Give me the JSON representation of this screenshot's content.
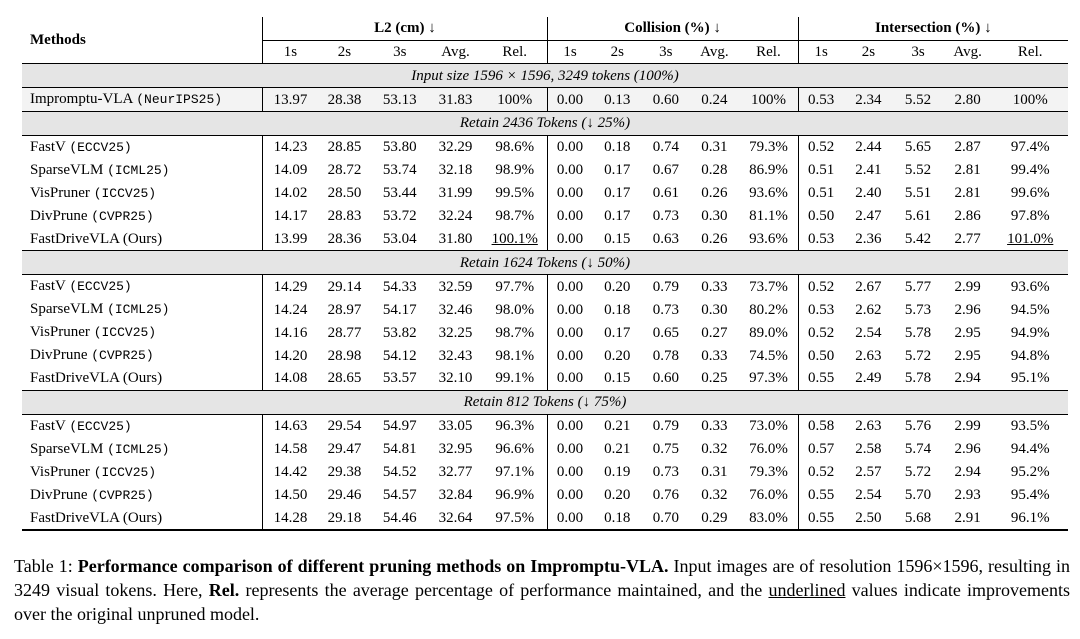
{
  "table": {
    "methods_header": "Methods",
    "groups": [
      "L2 (cm) ↓",
      "Collision (%) ↓",
      "Intersection (%) ↓"
    ],
    "subheaders": [
      "1s",
      "2s",
      "3s",
      "Avg.",
      "Rel."
    ],
    "baseline_section": "Input size 1596 × 1596, 3249 tokens (100%)",
    "baseline": {
      "name": "Impromptu-VLA",
      "venue": "(NeurIPS25)",
      "cells": [
        "13.97",
        "28.38",
        "53.13",
        "31.83",
        "100%",
        "0.00",
        "0.13",
        "0.60",
        "0.24",
        "100%",
        "0.53",
        "2.34",
        "5.52",
        "2.80",
        "100%"
      ],
      "bold": [],
      "underline": []
    },
    "sections": [
      {
        "label": "Retain 2436 Tokens (↓ 25%)",
        "rows": [
          {
            "name": "FastV",
            "venue": "(ECCV25)",
            "cells": [
              "14.23",
              "28.85",
              "53.80",
              "32.29",
              "98.6%",
              "0.00",
              "0.18",
              "0.74",
              "0.31",
              "79.3%",
              "0.52",
              "2.44",
              "5.65",
              "2.87",
              "97.4%"
            ],
            "bold": [],
            "underline": []
          },
          {
            "name": "SparseVLM",
            "venue": "(ICML25)",
            "cells": [
              "14.09",
              "28.72",
              "53.74",
              "32.18",
              "98.9%",
              "0.00",
              "0.17",
              "0.67",
              "0.28",
              "86.9%",
              "0.51",
              "2.41",
              "5.52",
              "2.81",
              "99.4%"
            ],
            "bold": [],
            "underline": []
          },
          {
            "name": "VisPruner",
            "venue": "(ICCV25)",
            "cells": [
              "14.02",
              "28.50",
              "53.44",
              "31.99",
              "99.5%",
              "0.00",
              "0.17",
              "0.61",
              "0.26",
              "93.6%",
              "0.51",
              "2.40",
              "5.51",
              "2.81",
              "99.6%"
            ],
            "bold": [
              7
            ],
            "underline": []
          },
          {
            "name": "DivPrune",
            "venue": "(CVPR25)",
            "cells": [
              "14.17",
              "28.83",
              "53.72",
              "32.24",
              "98.7%",
              "0.00",
              "0.17",
              "0.73",
              "0.30",
              "81.1%",
              "0.50",
              "2.47",
              "5.61",
              "2.86",
              "97.8%"
            ],
            "bold": [
              10
            ],
            "underline": []
          },
          {
            "name": "FastDriveVLA (Ours)",
            "venue": "",
            "name_bold": true,
            "cells": [
              "13.99",
              "28.36",
              "53.04",
              "31.80",
              "100.1%",
              "0.00",
              "0.15",
              "0.63",
              "0.26",
              "93.6%",
              "0.53",
              "2.36",
              "5.42",
              "2.77",
              "101.0%"
            ],
            "bold": [
              0,
              1,
              2,
              3,
              4,
              5,
              6,
              8,
              9,
              11,
              12,
              13,
              14
            ],
            "underline": [
              4,
              14
            ]
          }
        ]
      },
      {
        "label": "Retain 1624 Tokens (↓ 50%)",
        "rows": [
          {
            "name": "FastV",
            "venue": "(ECCV25)",
            "cells": [
              "14.29",
              "29.14",
              "54.33",
              "32.59",
              "97.7%",
              "0.00",
              "0.20",
              "0.79",
              "0.33",
              "73.7%",
              "0.52",
              "2.67",
              "5.77",
              "2.99",
              "93.6%"
            ],
            "bold": [],
            "underline": []
          },
          {
            "name": "SparseVLM",
            "venue": "(ICML25)",
            "cells": [
              "14.24",
              "28.97",
              "54.17",
              "32.46",
              "98.0%",
              "0.00",
              "0.18",
              "0.73",
              "0.30",
              "80.2%",
              "0.53",
              "2.62",
              "5.73",
              "2.96",
              "94.5%"
            ],
            "bold": [],
            "underline": []
          },
          {
            "name": "VisPruner",
            "venue": "(ICCV25)",
            "cells": [
              "14.16",
              "28.77",
              "53.82",
              "32.25",
              "98.7%",
              "0.00",
              "0.17",
              "0.65",
              "0.27",
              "89.0%",
              "0.52",
              "2.54",
              "5.78",
              "2.95",
              "94.9%"
            ],
            "bold": [],
            "underline": []
          },
          {
            "name": "DivPrune",
            "venue": "(CVPR25)",
            "cells": [
              "14.20",
              "28.98",
              "54.12",
              "32.43",
              "98.1%",
              "0.00",
              "0.20",
              "0.78",
              "0.33",
              "74.5%",
              "0.50",
              "2.63",
              "5.72",
              "2.95",
              "94.8%"
            ],
            "bold": [
              10,
              12
            ],
            "underline": []
          },
          {
            "name": "FastDriveVLA (Ours)",
            "venue": "",
            "name_bold": true,
            "cells": [
              "14.08",
              "28.65",
              "53.57",
              "32.10",
              "99.1%",
              "0.00",
              "0.15",
              "0.60",
              "0.25",
              "97.3%",
              "0.55",
              "2.49",
              "5.78",
              "2.94",
              "95.1%"
            ],
            "bold": [
              0,
              1,
              2,
              3,
              4,
              5,
              6,
              7,
              8,
              9,
              11,
              13,
              14
            ],
            "underline": []
          }
        ]
      },
      {
        "label": "Retain 812 Tokens (↓ 75%)",
        "rows": [
          {
            "name": "FastV",
            "venue": "(ECCV25)",
            "cells": [
              "14.63",
              "29.54",
              "54.97",
              "33.05",
              "96.3%",
              "0.00",
              "0.21",
              "0.79",
              "0.33",
              "73.0%",
              "0.58",
              "2.63",
              "5.76",
              "2.99",
              "93.5%"
            ],
            "bold": [],
            "underline": []
          },
          {
            "name": "SparseVLM",
            "venue": "(ICML25)",
            "cells": [
              "14.58",
              "29.47",
              "54.81",
              "32.95",
              "96.6%",
              "0.00",
              "0.21",
              "0.75",
              "0.32",
              "76.0%",
              "0.57",
              "2.58",
              "5.74",
              "2.96",
              "94.4%"
            ],
            "bold": [],
            "underline": []
          },
          {
            "name": "VisPruner",
            "venue": "(ICCV25)",
            "cells": [
              "14.42",
              "29.38",
              "54.52",
              "32.77",
              "97.1%",
              "0.00",
              "0.19",
              "0.73",
              "0.31",
              "79.3%",
              "0.52",
              "2.57",
              "5.72",
              "2.94",
              "95.2%"
            ],
            "bold": [
              10
            ],
            "underline": []
          },
          {
            "name": "DivPrune",
            "venue": "(CVPR25)",
            "cells": [
              "14.50",
              "29.46",
              "54.57",
              "32.84",
              "96.9%",
              "0.00",
              "0.20",
              "0.76",
              "0.32",
              "76.0%",
              "0.55",
              "2.54",
              "5.70",
              "2.93",
              "95.4%"
            ],
            "bold": [],
            "underline": []
          },
          {
            "name": "FastDriveVLA (Ours)",
            "venue": "",
            "name_bold": true,
            "cells": [
              "14.28",
              "29.18",
              "54.46",
              "32.64",
              "97.5%",
              "0.00",
              "0.18",
              "0.70",
              "0.29",
              "83.0%",
              "0.55",
              "2.50",
              "5.68",
              "2.91",
              "96.1%"
            ],
            "bold": [
              0,
              1,
              2,
              3,
              4,
              5,
              6,
              7,
              8,
              9,
              11,
              12,
              13,
              14
            ],
            "underline": []
          }
        ]
      }
    ]
  },
  "caption": {
    "label": "Table 1: ",
    "title": "Performance comparison of different pruning methods on Impromptu-VLA.",
    "text1": " Input images are of resolution 1596×1596, resulting in 3249 visual tokens. Here, ",
    "rel": "Rel.",
    "text2": " represents the average percentage of performance maintained, and the ",
    "underlined": "underlined",
    "text3": " values indicate improvements over the original unpruned model."
  }
}
